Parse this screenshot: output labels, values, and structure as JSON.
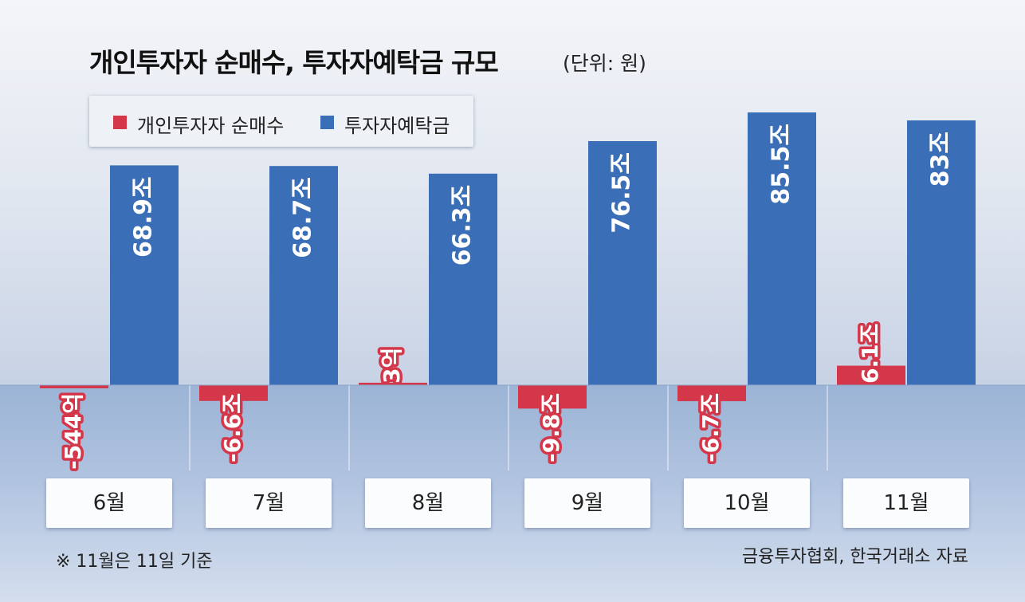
{
  "title": "개인투자자 순매수, 투자자예탁금 규모",
  "unit": "(단위: 원)",
  "legend": {
    "items": [
      {
        "label": "개인투자자 순매수",
        "color": "#d4364a"
      },
      {
        "label": "투자자예탁금",
        "color": "#3a6eb6"
      }
    ]
  },
  "chart_data": {
    "type": "bar",
    "categories": [
      "6월",
      "7월",
      "8월",
      "9월",
      "10월",
      "11월"
    ],
    "series": [
      {
        "name": "개인투자자 순매수",
        "unit": "조",
        "values": [
          -0.0544,
          -6.6,
          0.0003,
          -9.8,
          -6.7,
          6.1
        ],
        "labels": [
          "-544억",
          "-6.6조",
          "3억",
          "-9.8조",
          "-6.7조",
          "6.1조"
        ],
        "color": "#d4364a"
      },
      {
        "name": "투자자예탁금",
        "unit": "조",
        "values": [
          68.9,
          68.7,
          66.3,
          76.5,
          85.5,
          83
        ],
        "labels": [
          "68.9조",
          "68.7조",
          "66.3조",
          "76.5조",
          "85.5조",
          "83조"
        ],
        "color": "#3a6eb6"
      }
    ]
  },
  "footnote": "※ 11월은 11일 기준",
  "source": "금융투자협회, 한국거래소 자료"
}
